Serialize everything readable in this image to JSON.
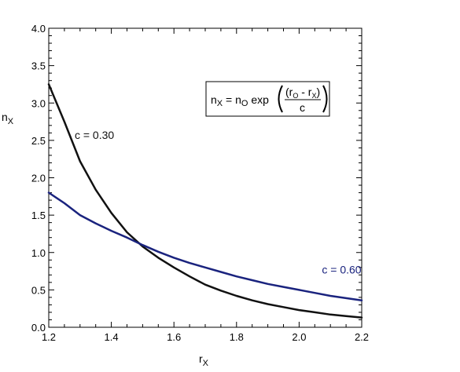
{
  "chart_data": {
    "type": "line",
    "title": "",
    "xlabel": "r",
    "xlabel_sub": "X",
    "ylabel": "n",
    "ylabel_sub": "X",
    "xlim": [
      1.2,
      2.2
    ],
    "ylim": [
      0.0,
      4.0
    ],
    "x_ticks": [
      "1.2",
      "1.4",
      "1.6",
      "1.8",
      "2.0",
      "2.2"
    ],
    "y_ticks": [
      "0.0",
      "0.5",
      "1.0",
      "1.5",
      "2.0",
      "2.5",
      "3.0",
      "3.5",
      "4.0"
    ],
    "grid": false,
    "series": [
      {
        "name": "c = 0.30",
        "color": "#111111",
        "x": [
          1.2,
          1.25,
          1.3,
          1.35,
          1.4,
          1.45,
          1.5,
          1.55,
          1.6,
          1.65,
          1.7,
          1.75,
          1.8,
          1.85,
          1.9,
          1.95,
          2.0,
          2.05,
          2.1,
          2.15,
          2.2
        ],
        "y": [
          3.25,
          2.75,
          2.22,
          1.84,
          1.53,
          1.27,
          1.08,
          0.93,
          0.8,
          0.68,
          0.57,
          0.49,
          0.42,
          0.36,
          0.31,
          0.27,
          0.23,
          0.2,
          0.17,
          0.15,
          0.13
        ]
      },
      {
        "name": "c = 0.60",
        "color": "#1a237e",
        "x": [
          1.2,
          1.25,
          1.3,
          1.35,
          1.4,
          1.45,
          1.5,
          1.55,
          1.6,
          1.65,
          1.7,
          1.75,
          1.8,
          1.85,
          1.9,
          1.95,
          2.0,
          2.05,
          2.1,
          2.15,
          2.2
        ],
        "y": [
          1.8,
          1.66,
          1.5,
          1.39,
          1.29,
          1.2,
          1.1,
          1.01,
          0.93,
          0.86,
          0.8,
          0.74,
          0.68,
          0.63,
          0.58,
          0.54,
          0.5,
          0.46,
          0.42,
          0.39,
          0.36
        ]
      }
    ],
    "annotations": [
      {
        "text": "c = 0.30",
        "x": 1.22,
        "y": 2.52,
        "color": "#111111"
      },
      {
        "text": "c = 0.60",
        "x": 2.01,
        "y": 0.72,
        "color": "#1a237e"
      }
    ],
    "formula": {
      "lhs": "n",
      "lhs_sub": "X",
      "eq": " = n",
      "n0_sub": "O",
      "fn": " exp",
      "numerator": "(r",
      "num_sub1": "O",
      "num_mid": " - r",
      "num_sub2": "X",
      "num_close": ")",
      "denominator": "c"
    }
  }
}
